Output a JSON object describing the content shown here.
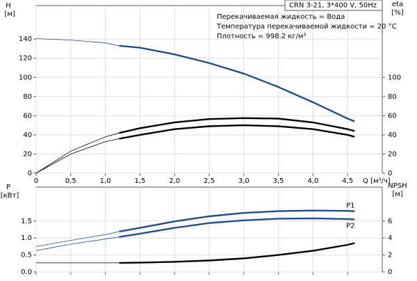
{
  "chart_data": [
    {
      "type": "line",
      "annotations": [
        "CRN 3-21, 3*400 V, 50Hz",
        "Перекачиваемая жидкость = Вода",
        "Температура перекачиваемой жидкости = 20 °C",
        "Плотность = 998.2 кг/м³"
      ],
      "y_label": "H",
      "y_unit": "[м]",
      "y2_label": "eta",
      "y2_unit": "[%]",
      "x_label": "Q [м³/ч]",
      "x": [
        0,
        0.5,
        1.0,
        1.2,
        1.5,
        2.0,
        2.5,
        3.0,
        3.5,
        4.0,
        4.5,
        4.6
      ],
      "xlim": [
        0,
        5
      ],
      "xticks": [
        0,
        {
          "value": 0.5,
          "label": "0,5"
        },
        {
          "value": 1.0,
          "label": "1,0"
        },
        {
          "value": 1.5,
          "label": "1,5"
        },
        {
          "value": 2.0,
          "label": "2,0"
        },
        {
          "value": 2.5,
          "label": "2,5"
        },
        {
          "value": 3.0,
          "label": "3,0"
        },
        {
          "value": 3.5,
          "label": "3,5"
        },
        {
          "value": 4.0,
          "label": "4,0"
        },
        {
          "value": 4.5,
          "label": "4,5"
        }
      ],
      "ylim": [
        0,
        175
      ],
      "yticks": [
        0,
        20,
        40,
        60,
        80,
        100,
        120,
        140
      ],
      "y2lim": [
        0,
        175
      ],
      "y2ticks": [
        0,
        20,
        40,
        60,
        80,
        100
      ],
      "grid": true,
      "thick_from": 1.2,
      "series": [
        {
          "color": "#1f4e8c",
          "values": [
            140.5,
            139,
            136,
            133,
            131,
            124,
            115,
            104,
            90,
            74,
            57,
            54
          ]
        },
        {
          "color": "#000000",
          "axis": "y2",
          "values": [
            0,
            23,
            38,
            42,
            47,
            53,
            56.5,
            57.5,
            57,
            53,
            46,
            44
          ]
        },
        {
          "color": "#000000",
          "axis": "y2",
          "values": [
            0,
            20,
            33,
            36,
            40,
            46,
            49,
            50,
            49,
            46,
            40,
            38
          ]
        }
      ]
    },
    {
      "type": "line",
      "y_label": "P",
      "y_unit": "[кВт]",
      "y2_label": "NPSH",
      "y2_unit": "[м]",
      "x": [
        0,
        0.5,
        1.0,
        1.2,
        1.5,
        2.0,
        2.5,
        3.0,
        3.5,
        4.0,
        4.5,
        4.6
      ],
      "xlim": [
        0,
        5
      ],
      "xticks": [
        0,
        0.5,
        1.0,
        1.5,
        2.0,
        2.5,
        3.0,
        3.5,
        4.0,
        4.5
      ],
      "ylim": [
        0,
        2.5
      ],
      "yticks": [
        {
          "value": 0,
          "label": "0.0"
        },
        {
          "value": 0.5,
          "label": "0.5"
        },
        {
          "value": 1.0,
          "label": "1.0"
        },
        {
          "value": 1.5,
          "label": "1.5"
        }
      ],
      "y2lim": [
        0,
        10
      ],
      "y2ticks": [
        0,
        2,
        4,
        6
      ],
      "grid": true,
      "thick_from": 1.2,
      "series": [
        {
          "name": "P1",
          "color": "#1f4e8c",
          "values": [
            0.75,
            0.93,
            1.1,
            1.19,
            1.3,
            1.49,
            1.64,
            1.74,
            1.79,
            1.81,
            1.8,
            1.79
          ]
        },
        {
          "name": "P2",
          "color": "#1f4e8c",
          "values": [
            0.63,
            0.82,
            0.97,
            1.03,
            1.13,
            1.3,
            1.44,
            1.52,
            1.57,
            1.58,
            1.56,
            1.55
          ]
        },
        {
          "color": "#000000",
          "axis": "y2",
          "values": [
            1.07,
            1.07,
            1.07,
            1.07,
            1.1,
            1.2,
            1.35,
            1.6,
            2.0,
            2.5,
            3.2,
            3.4
          ]
        }
      ]
    }
  ]
}
